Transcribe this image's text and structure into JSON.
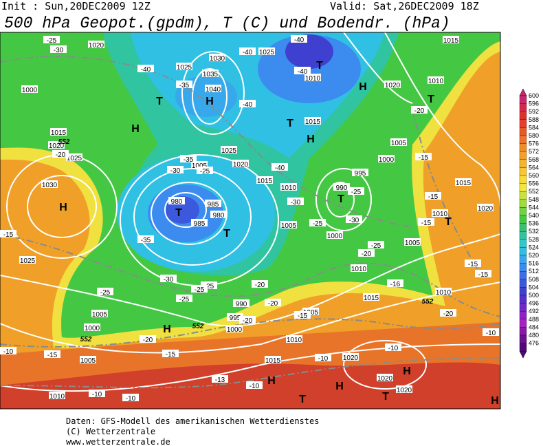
{
  "header": {
    "init": "Init : Sun,20DEC2009 12Z",
    "valid": "Valid: Sat,26DEC2009 18Z",
    "title": "500 hPa Geopot.(gpdm), T (C) und Bodendr. (hPa)"
  },
  "map_labels": {
    "pressure_centers": [
      "H",
      "T",
      "H",
      "T",
      "H",
      "T",
      "H",
      "H",
      "T",
      "T",
      "T",
      "H",
      "H",
      "H",
      "H",
      "T",
      "T",
      "T",
      "H",
      "T"
    ],
    "isobars": [
      1020,
      1025,
      1030,
      1035,
      1040,
      1025,
      1010,
      1000,
      1015,
      1020,
      1025,
      1030,
      1025,
      1005,
      980,
      985,
      985,
      980,
      1025,
      1020,
      1015,
      1010,
      1005,
      1000,
      995,
      990,
      1000,
      1005,
      1015,
      1005,
      1010,
      1015,
      1010,
      1015,
      1010,
      1020,
      1020,
      1010,
      1015,
      990,
      995,
      1000,
      1005,
      1010,
      1015,
      1020,
      1020,
      1020,
      1005,
      1000,
      1005,
      1010
    ],
    "temperatures": [
      -25,
      -30,
      -40,
      -35,
      -40,
      -40,
      -40,
      -40,
      -40,
      -35,
      -30,
      -25,
      -30,
      -25,
      -25,
      -30,
      -25,
      -20,
      -35,
      -30,
      -25,
      -25,
      -20,
      -20,
      -25,
      -20,
      -15,
      -15,
      -10,
      -15,
      -20,
      -20,
      -15,
      -15,
      -15,
      -15,
      -15,
      -20,
      -16,
      -10,
      -10,
      -10,
      -10,
      -13,
      -10,
      -10,
      -15,
      -20,
      -25
    ],
    "contour_552": [
      552,
      552,
      552,
      552
    ]
  },
  "colorbar": {
    "levels": [
      600,
      596,
      592,
      588,
      584,
      580,
      576,
      572,
      568,
      564,
      560,
      556,
      552,
      548,
      544,
      540,
      536,
      532,
      528,
      524,
      520,
      516,
      512,
      508,
      504,
      500,
      496,
      492,
      488,
      484,
      480,
      476
    ],
    "colors": [
      "#c8286e",
      "#d42848",
      "#dc3030",
      "#e4402c",
      "#e85a28",
      "#ec7428",
      "#f08c28",
      "#f4a028",
      "#f6b42c",
      "#f8c830",
      "#f8dc34",
      "#f0e83c",
      "#c8e43c",
      "#9cdc3c",
      "#70d440",
      "#44c844",
      "#38c070",
      "#30c4a0",
      "#30c8c8",
      "#30c0e4",
      "#38a8ec",
      "#3c8cf0",
      "#3c70e8",
      "#3c58dc",
      "#4040d0",
      "#5430c8",
      "#7028c8",
      "#9020c8",
      "#a820c0",
      "#8818a8",
      "#6c1090",
      "#500878"
    ]
  },
  "footer": {
    "line1": "Daten: GFS-Modell des amerikanischen Wetterdienstes",
    "line2": "(C) Wetterzentrale",
    "line3": "www.wetterzentrale.de"
  }
}
